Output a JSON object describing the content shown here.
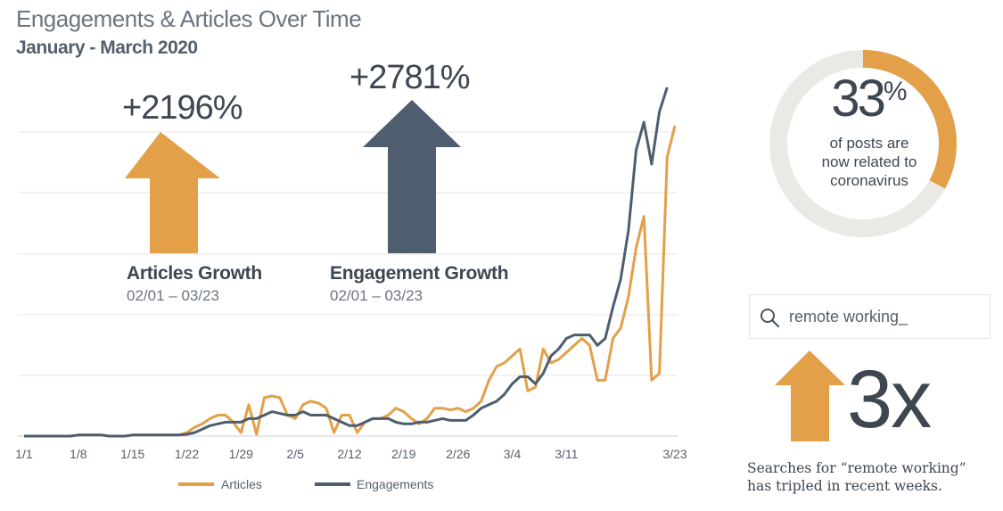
{
  "header": {
    "title": "Engagements & Articles Over Time",
    "subtitle": "January - March 2020"
  },
  "colors": {
    "articles": "#E3A048",
    "engagements": "#4E5E6E",
    "grid": "#e6e6e6",
    "donut_track": "#ebe9e4"
  },
  "growth": {
    "articles": {
      "value": "+2196%",
      "label": "Articles Growth",
      "range": "02/01 – 03/23"
    },
    "engagements": {
      "value": "+2781%",
      "label": "Engagement Growth",
      "range": "02/01 – 03/23"
    }
  },
  "donut": {
    "value": "33",
    "unit": "%",
    "fraction": 0.33,
    "line1": "of posts are",
    "line2": "now related to",
    "line3": "coronavirus"
  },
  "search": {
    "icon": "search-icon",
    "query": "remote working_"
  },
  "multiplier": {
    "value": "3x",
    "line1": "Searches for “remote working”",
    "line2": "has tripled in recent weeks."
  },
  "chart_data": {
    "type": "line",
    "title": "",
    "xlabel": "",
    "ylabel": "",
    "x_ticks": [
      "1/1",
      "1/8",
      "1/15",
      "1/22",
      "1/29",
      "2/5",
      "2/12",
      "2/19",
      "2/26",
      "3/4",
      "3/11",
      "3/23"
    ],
    "ylim": [
      0,
      100
    ],
    "grid": true,
    "legend_position": "bottom",
    "series": [
      {
        "name": "Articles",
        "values": [
          0,
          0,
          0,
          0,
          0,
          0,
          0,
          0.3,
          0.3,
          0.3,
          0.3,
          0,
          0,
          0,
          0.3,
          0.3,
          0.3,
          0.3,
          0.3,
          0.3,
          0.3,
          1,
          2.5,
          3.5,
          5,
          6,
          6,
          4,
          1,
          9,
          0.5,
          11,
          11.5,
          11,
          6,
          5,
          9,
          10,
          9.5,
          8,
          1,
          6,
          6,
          1,
          4,
          5,
          5,
          6,
          8,
          7,
          5,
          3.5,
          5,
          8,
          8,
          7.5,
          8,
          7,
          8,
          10,
          16,
          20,
          21,
          23,
          25,
          13,
          14,
          25,
          21,
          22,
          24,
          26,
          28,
          26,
          16,
          16,
          28,
          31,
          40,
          54,
          63,
          16,
          18,
          80,
          89
        ]
      },
      {
        "name": "Engagements",
        "values": [
          0,
          0,
          0,
          0,
          0,
          0,
          0,
          0.3,
          0.3,
          0.3,
          0.3,
          0,
          0,
          0,
          0.3,
          0.3,
          0.3,
          0.3,
          0.3,
          0.3,
          0.3,
          0.5,
          1,
          2,
          3,
          3.5,
          4,
          4,
          4,
          5,
          5,
          6,
          7,
          6.5,
          6,
          6,
          7,
          6,
          6,
          6,
          5,
          4,
          3,
          3,
          4,
          5,
          5,
          5,
          4,
          3.5,
          3.5,
          4,
          4,
          4.5,
          5,
          4.5,
          4.5,
          4.5,
          6,
          8,
          9,
          10,
          12,
          15,
          17,
          17,
          15,
          18,
          23,
          25,
          28,
          29,
          29,
          29,
          26,
          28,
          37,
          45,
          59,
          82,
          90,
          78,
          93,
          100
        ]
      }
    ]
  }
}
